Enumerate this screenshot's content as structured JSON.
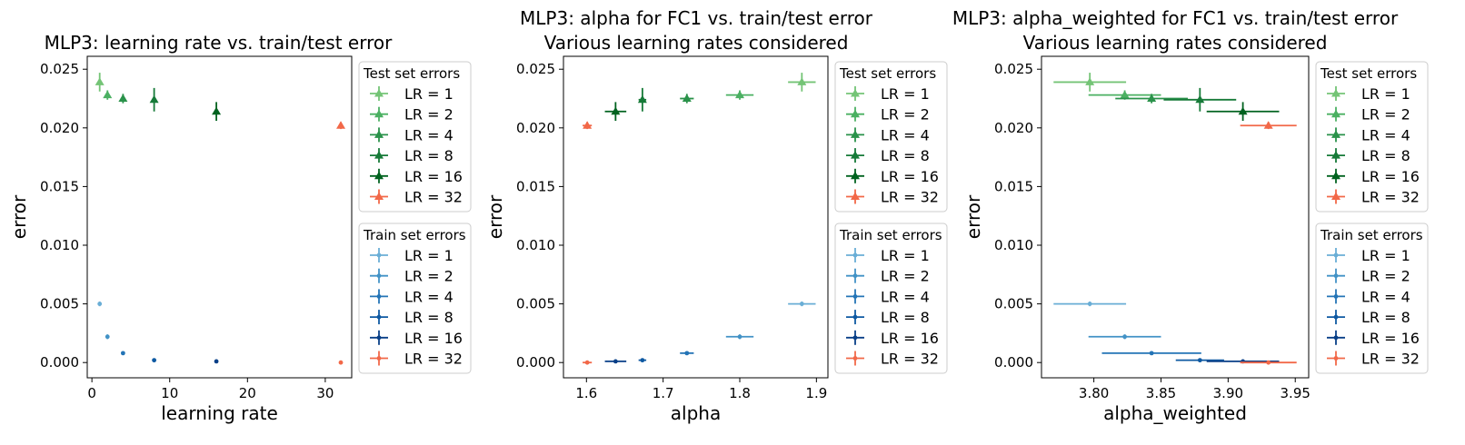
{
  "chart_data": [
    {
      "type": "scatter",
      "title": "MLP3: learning rate vs. train/test error",
      "xlabel": "learning rate",
      "ylabel": "error",
      "xlim": [
        -0.6,
        33.4
      ],
      "ylim": [
        -0.0013,
        0.0261
      ],
      "xticks": [
        0,
        10,
        20,
        30
      ],
      "xtick_labels": [
        "0",
        "10",
        "20",
        "30"
      ],
      "yticks": [
        0.0,
        0.005,
        0.01,
        0.015,
        0.02,
        0.025
      ],
      "ytick_labels": [
        "0.000",
        "0.005",
        "0.010",
        "0.015",
        "0.020",
        "0.025"
      ],
      "grid": false,
      "legend_placement": "outside-right",
      "legends": [
        {
          "title": "Test set errors",
          "entries": [
            "LR = 1",
            "LR = 2",
            "LR = 4",
            "LR = 8",
            "LR = 16",
            "LR = 32"
          ]
        },
        {
          "title": "Train set errors",
          "entries": [
            "LR = 1",
            "LR = 2",
            "LR = 4",
            "LR = 8",
            "LR = 16",
            "LR = 32"
          ]
        }
      ],
      "series": [
        {
          "group": "test",
          "lr": 1,
          "color": "#74c476",
          "marker": "triangle",
          "x": 1,
          "y": 0.0239,
          "xerr": 0,
          "yerr": 0.0008
        },
        {
          "group": "test",
          "lr": 2,
          "color": "#4bb062",
          "marker": "triangle",
          "x": 2,
          "y": 0.0228,
          "xerr": 0,
          "yerr": 0.0004
        },
        {
          "group": "test",
          "lr": 4,
          "color": "#2a924a",
          "marker": "triangle",
          "x": 4,
          "y": 0.0225,
          "xerr": 0,
          "yerr": 0.0004
        },
        {
          "group": "test",
          "lr": 8,
          "color": "#167a38",
          "marker": "triangle",
          "x": 8,
          "y": 0.0224,
          "xerr": 0,
          "yerr": 0.001
        },
        {
          "group": "test",
          "lr": 16,
          "color": "#00621f",
          "marker": "triangle",
          "x": 16,
          "y": 0.0214,
          "xerr": 0,
          "yerr": 0.0008
        },
        {
          "group": "test",
          "lr": 32,
          "color": "#f26848",
          "marker": "triangle",
          "x": 32,
          "y": 0.0202,
          "xerr": 0,
          "yerr": 0.0003
        },
        {
          "group": "train",
          "lr": 1,
          "color": "#6aaed6",
          "marker": "dot",
          "x": 1,
          "y": 0.005,
          "xerr": 0,
          "yerr": 0.0002
        },
        {
          "group": "train",
          "lr": 2,
          "color": "#4292c6",
          "marker": "dot",
          "x": 2,
          "y": 0.0022,
          "xerr": 0,
          "yerr": 0.0002
        },
        {
          "group": "train",
          "lr": 4,
          "color": "#2474b6",
          "marker": "dot",
          "x": 4,
          "y": 0.0008,
          "xerr": 0,
          "yerr": 0.0001
        },
        {
          "group": "train",
          "lr": 8,
          "color": "#0e59a2",
          "marker": "dot",
          "x": 8,
          "y": 0.0002,
          "xerr": 0,
          "yerr": 0.0001
        },
        {
          "group": "train",
          "lr": 16,
          "color": "#083f87",
          "marker": "dot",
          "x": 16,
          "y": 0.0001,
          "xerr": 0,
          "yerr": 0.0001
        },
        {
          "group": "train",
          "lr": 32,
          "color": "#f26848",
          "marker": "dot",
          "x": 32,
          "y": 0.0,
          "xerr": 0,
          "yerr": 0.0
        }
      ]
    },
    {
      "type": "scatter",
      "title": "MLP3: alpha for FC1 vs. train/test error\nVarious learning rates considered",
      "xlabel": "alpha",
      "ylabel": "error",
      "xlim": [
        1.57,
        1.915
      ],
      "ylim": [
        -0.0013,
        0.0261
      ],
      "xticks": [
        1.6,
        1.7,
        1.8,
        1.9
      ],
      "xtick_labels": [
        "1.6",
        "1.7",
        "1.8",
        "1.9"
      ],
      "yticks": [
        0.0,
        0.005,
        0.01,
        0.015,
        0.02,
        0.025
      ],
      "ytick_labels": [
        "0.000",
        "0.005",
        "0.010",
        "0.015",
        "0.020",
        "0.025"
      ],
      "grid": false,
      "legend_placement": "outside-right",
      "legends": [
        {
          "title": "Test set errors",
          "entries": [
            "LR = 1",
            "LR = 2",
            "LR = 4",
            "LR = 8",
            "LR = 16",
            "LR = 32"
          ]
        },
        {
          "title": "Train set errors",
          "entries": [
            "LR = 1",
            "LR = 2",
            "LR = 4",
            "LR = 8",
            "LR = 16",
            "LR = 32"
          ]
        }
      ],
      "series": [
        {
          "group": "test",
          "lr": 1,
          "color": "#74c476",
          "marker": "triangle",
          "x": 1.881,
          "y": 0.0239,
          "xerr": 0.018,
          "yerr": 0.0008
        },
        {
          "group": "test",
          "lr": 2,
          "color": "#4bb062",
          "marker": "triangle",
          "x": 1.8,
          "y": 0.0228,
          "xerr": 0.018,
          "yerr": 0.0004
        },
        {
          "group": "test",
          "lr": 4,
          "color": "#2a924a",
          "marker": "triangle",
          "x": 1.731,
          "y": 0.0225,
          "xerr": 0.009,
          "yerr": 0.0004
        },
        {
          "group": "test",
          "lr": 8,
          "color": "#167a38",
          "marker": "triangle",
          "x": 1.673,
          "y": 0.0224,
          "xerr": 0.005,
          "yerr": 0.001
        },
        {
          "group": "test",
          "lr": 16,
          "color": "#00621f",
          "marker": "triangle",
          "x": 1.638,
          "y": 0.0214,
          "xerr": 0.014,
          "yerr": 0.0008
        },
        {
          "group": "test",
          "lr": 32,
          "color": "#f26848",
          "marker": "triangle",
          "x": 1.601,
          "y": 0.0202,
          "xerr": 0.006,
          "yerr": 0.0003
        },
        {
          "group": "train",
          "lr": 1,
          "color": "#6aaed6",
          "marker": "dot",
          "x": 1.881,
          "y": 0.005,
          "xerr": 0.018,
          "yerr": 0.0002
        },
        {
          "group": "train",
          "lr": 2,
          "color": "#4292c6",
          "marker": "dot",
          "x": 1.8,
          "y": 0.0022,
          "xerr": 0.018,
          "yerr": 0.0002
        },
        {
          "group": "train",
          "lr": 4,
          "color": "#2474b6",
          "marker": "dot",
          "x": 1.731,
          "y": 0.0008,
          "xerr": 0.009,
          "yerr": 0.0001
        },
        {
          "group": "train",
          "lr": 8,
          "color": "#0e59a2",
          "marker": "dot",
          "x": 1.673,
          "y": 0.0002,
          "xerr": 0.005,
          "yerr": 0.0001
        },
        {
          "group": "train",
          "lr": 16,
          "color": "#083f87",
          "marker": "dot",
          "x": 1.638,
          "y": 0.0001,
          "xerr": 0.014,
          "yerr": 0.0001
        },
        {
          "group": "train",
          "lr": 32,
          "color": "#f26848",
          "marker": "dot",
          "x": 1.601,
          "y": 0.0,
          "xerr": 0.006,
          "yerr": 0.0
        }
      ]
    },
    {
      "type": "scatter",
      "title": "MLP3: alpha_weighted for FC1 vs. train/test error\nVarious learning rates considered",
      "xlabel": "alpha_weighted",
      "ylabel": "error",
      "xlim": [
        3.761,
        3.96
      ],
      "ylim": [
        -0.0013,
        0.0261
      ],
      "xticks": [
        3.8,
        3.85,
        3.9,
        3.95
      ],
      "xtick_labels": [
        "3.80",
        "3.85",
        "3.90",
        "3.95"
      ],
      "yticks": [
        0.0,
        0.005,
        0.01,
        0.015,
        0.02,
        0.025
      ],
      "ytick_labels": [
        "0.000",
        "0.005",
        "0.010",
        "0.015",
        "0.020",
        "0.025"
      ],
      "grid": false,
      "legend_placement": "outside-right",
      "legends": [
        {
          "title": "Test set errors",
          "entries": [
            "LR = 1",
            "LR = 2",
            "LR = 4",
            "LR = 8",
            "LR = 16",
            "LR = 32"
          ]
        },
        {
          "title": "Train set errors",
          "entries": [
            "LR = 1",
            "LR = 2",
            "LR = 4",
            "LR = 8",
            "LR = 16",
            "LR = 32"
          ]
        }
      ],
      "series": [
        {
          "group": "test",
          "lr": 1,
          "color": "#74c476",
          "marker": "triangle",
          "x": 3.797,
          "y": 0.0239,
          "xerr": 0.027,
          "yerr": 0.0008
        },
        {
          "group": "test",
          "lr": 2,
          "color": "#4bb062",
          "marker": "triangle",
          "x": 3.823,
          "y": 0.0228,
          "xerr": 0.027,
          "yerr": 0.0004
        },
        {
          "group": "test",
          "lr": 4,
          "color": "#2a924a",
          "marker": "triangle",
          "x": 3.843,
          "y": 0.0225,
          "xerr": 0.027,
          "yerr": 0.0004
        },
        {
          "group": "test",
          "lr": 8,
          "color": "#167a38",
          "marker": "triangle",
          "x": 3.879,
          "y": 0.0224,
          "xerr": 0.027,
          "yerr": 0.001
        },
        {
          "group": "test",
          "lr": 16,
          "color": "#00621f",
          "marker": "triangle",
          "x": 3.911,
          "y": 0.0214,
          "xerr": 0.027,
          "yerr": 0.0008
        },
        {
          "group": "test",
          "lr": 32,
          "color": "#f26848",
          "marker": "triangle",
          "x": 3.93,
          "y": 0.0202,
          "xerr": 0.021,
          "yerr": 0.0003
        },
        {
          "group": "train",
          "lr": 1,
          "color": "#6aaed6",
          "marker": "dot",
          "x": 3.797,
          "y": 0.005,
          "xerr": 0.027,
          "yerr": 0.0002
        },
        {
          "group": "train",
          "lr": 2,
          "color": "#4292c6",
          "marker": "dot",
          "x": 3.823,
          "y": 0.0022,
          "xerr": 0.027,
          "yerr": 0.0002
        },
        {
          "group": "train",
          "lr": 4,
          "color": "#2474b6",
          "marker": "dot",
          "x": 3.843,
          "y": 0.0008,
          "xerr": 0.037,
          "yerr": 0.0001
        },
        {
          "group": "train",
          "lr": 8,
          "color": "#0e59a2",
          "marker": "dot",
          "x": 3.879,
          "y": 0.0002,
          "xerr": 0.018,
          "yerr": 0.0001
        },
        {
          "group": "train",
          "lr": 16,
          "color": "#083f87",
          "marker": "dot",
          "x": 3.911,
          "y": 0.0001,
          "xerr": 0.027,
          "yerr": 0.0001
        },
        {
          "group": "train",
          "lr": 32,
          "color": "#f26848",
          "marker": "dot",
          "x": 3.93,
          "y": 0.0,
          "xerr": 0.021,
          "yerr": 0.0
        }
      ]
    }
  ]
}
